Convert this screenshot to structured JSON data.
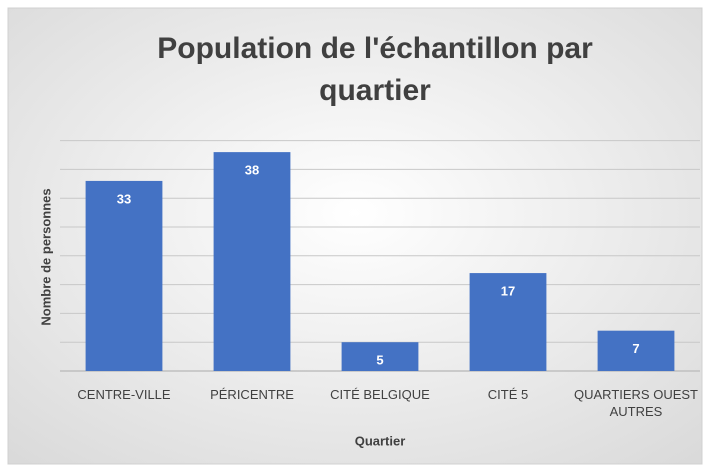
{
  "chart_data": {
    "type": "bar",
    "title": "Population de l'échantillon par quartier",
    "x_label": "Quartier",
    "y_label": "Nombre de personnes",
    "categories": [
      "CENTRE-VILLE",
      "PÉRICENTRE",
      "CITÉ BELGIQUE",
      "CITÉ 5",
      "QUARTIERS OUEST AUTRES"
    ],
    "values": [
      33,
      38,
      5,
      17,
      7
    ],
    "color": "#4472c4",
    "ylim": [
      0,
      40
    ],
    "yticks": [
      0,
      5,
      10,
      15,
      20,
      25,
      30,
      35,
      40
    ],
    "grid": true
  }
}
